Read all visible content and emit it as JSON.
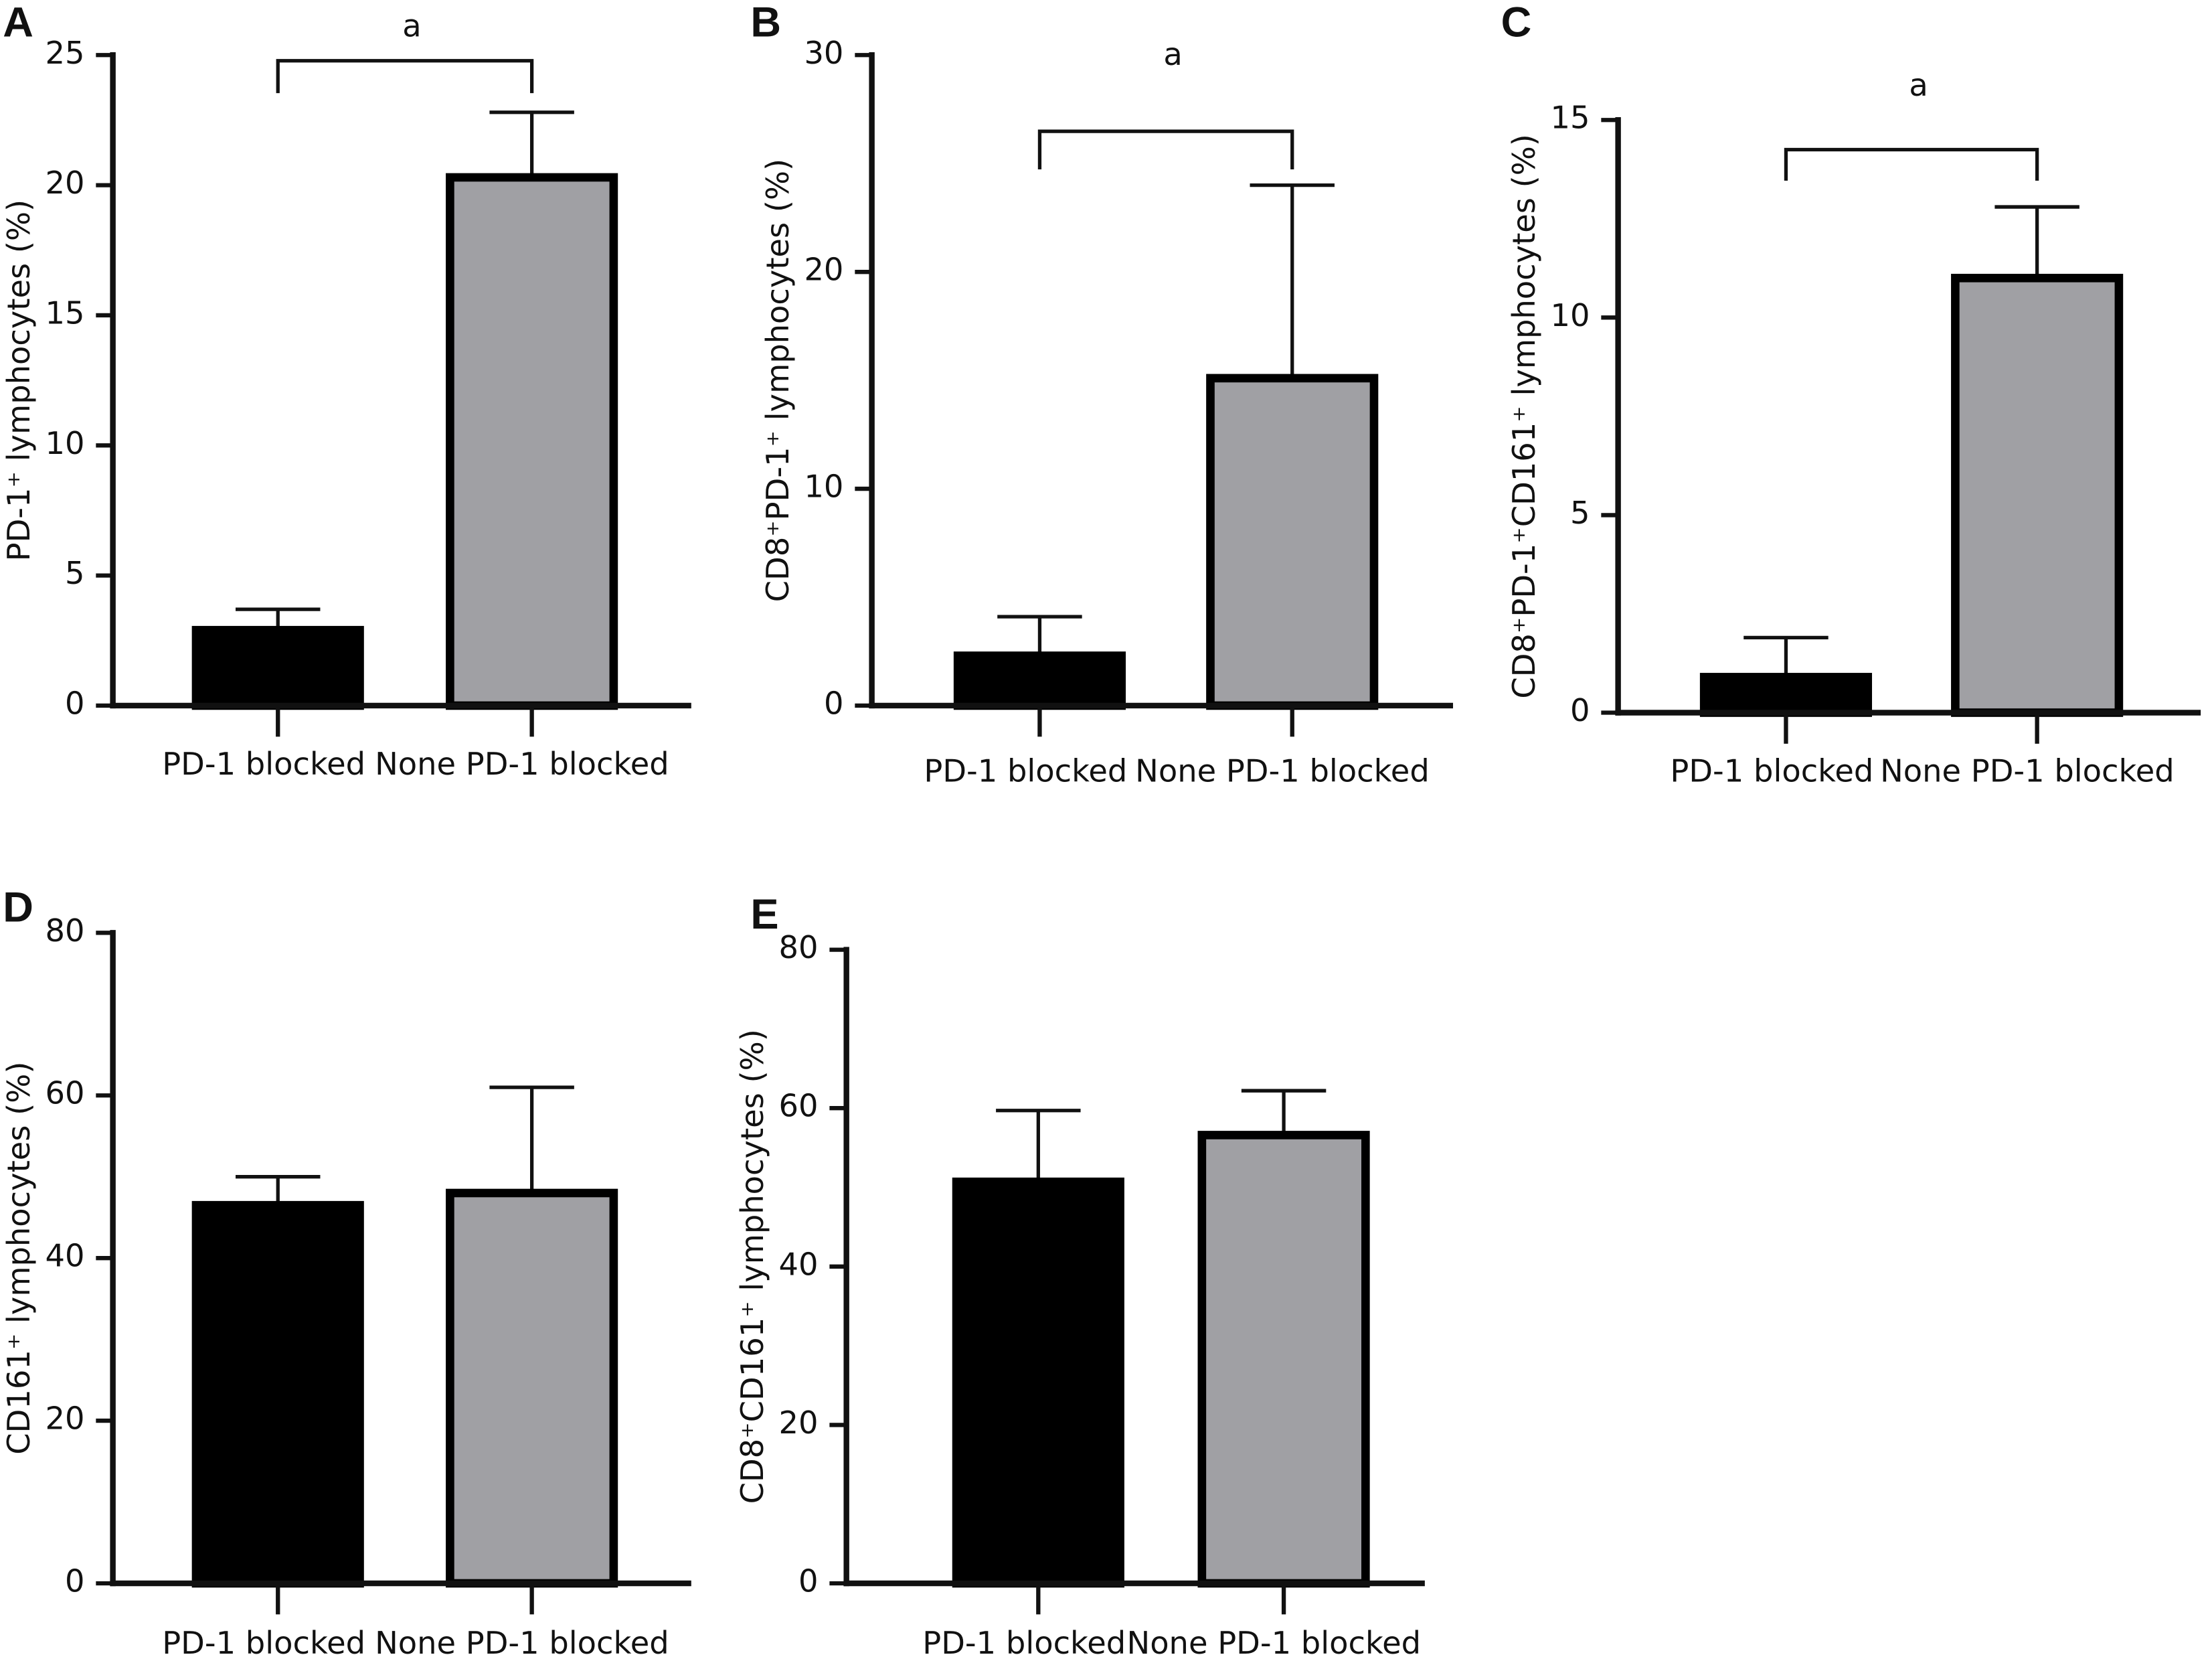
{
  "chart_data": [
    {
      "type": "bar",
      "panel": "A",
      "ylabel": "PD-1⁺ lymphocytes (%)",
      "categories": [
        "PD-1 blocked",
        "None PD-1 blocked"
      ],
      "values": [
        2.9,
        20.3
      ],
      "errors": [
        0.8,
        2.5
      ],
      "colors": [
        "#000000",
        "#a0a0a4"
      ],
      "annotation": "a",
      "ylim": [
        0,
        25
      ],
      "yticks": [
        0,
        5,
        10,
        15,
        20,
        25
      ]
    },
    {
      "type": "bar",
      "panel": "B",
      "ylabel": "CD8⁺PD-1⁺ lymphocytes (%)",
      "categories": [
        "PD-1 blocked",
        "None PD-1 blocked"
      ],
      "values": [
        2.3,
        15.1
      ],
      "errors": [
        1.8,
        8.9
      ],
      "colors": [
        "#000000",
        "#a0a0a4"
      ],
      "annotation": "a",
      "ylim": [
        0,
        30
      ],
      "yticks": [
        0,
        10,
        20,
        30
      ]
    },
    {
      "type": "bar",
      "panel": "C",
      "ylabel": "CD8⁺PD-1⁺CD161⁺ lymphocytes (%)",
      "categories": [
        "PD-1 blocked",
        "None PD-1 blocked"
      ],
      "values": [
        0.9,
        11.0
      ],
      "errors": [
        1.0,
        1.8
      ],
      "colors": [
        "#000000",
        "#a0a0a4"
      ],
      "annotation": "a",
      "ylim": [
        0,
        15
      ],
      "yticks": [
        0,
        5,
        10,
        15
      ]
    },
    {
      "type": "bar",
      "panel": "D",
      "ylabel": "CD161⁺ lymphocytes (%)",
      "categories": [
        "PD-1 blocked",
        "None PD-1 blocked"
      ],
      "values": [
        46.5,
        48
      ],
      "errors": [
        3.5,
        13
      ],
      "colors": [
        "#000000",
        "#a0a0a4"
      ],
      "ylim": [
        0,
        80
      ],
      "yticks": [
        0,
        20,
        40,
        60,
        80
      ]
    },
    {
      "type": "bar",
      "panel": "E",
      "ylabel": "CD8⁺CD161⁺ lymphocytes (%)",
      "categories": [
        "PD-1 blocked",
        "None PD-1 blocked"
      ],
      "values": [
        50.7,
        56.6
      ],
      "errors": [
        9,
        5.6
      ],
      "colors": [
        "#000000",
        "#a0a0a4"
      ],
      "ylim": [
        0,
        80
      ],
      "yticks": [
        0,
        20,
        40,
        60,
        80
      ]
    }
  ]
}
